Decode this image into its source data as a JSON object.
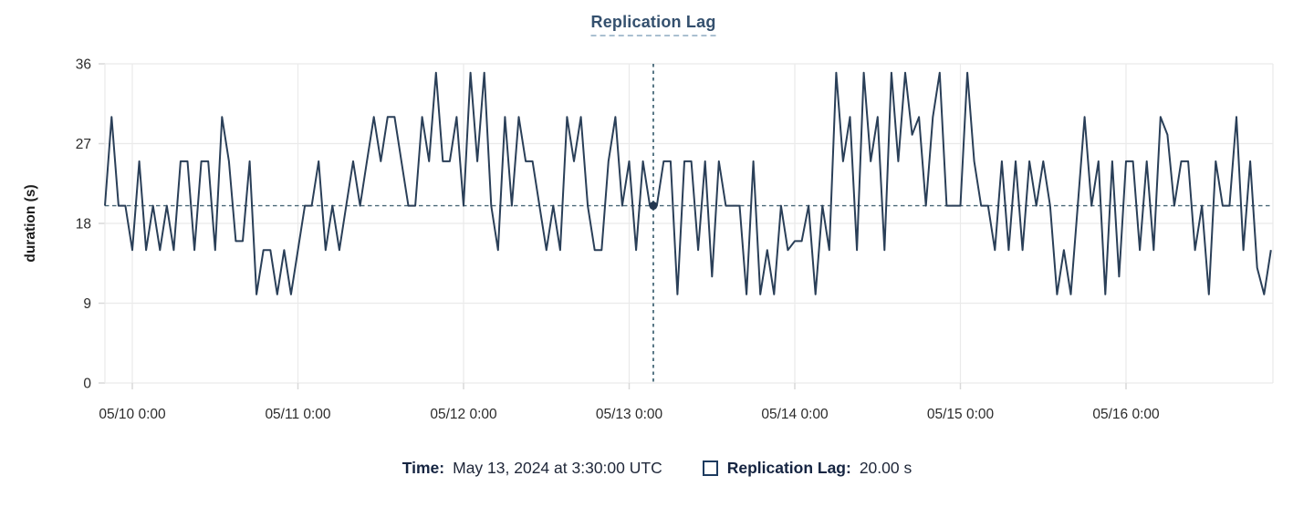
{
  "title": {
    "text": "Replication Lag"
  },
  "y_axis": {
    "label": "duration (s)",
    "ticks": [
      0,
      9,
      18,
      27,
      36
    ],
    "max": 36
  },
  "x_axis": {
    "ticks": [
      {
        "hour": 0,
        "label": "05/10 0:00"
      },
      {
        "hour": 24,
        "label": "05/11 0:00"
      },
      {
        "hour": 48,
        "label": "05/12 0:00"
      },
      {
        "hour": 72,
        "label": "05/13 0:00"
      },
      {
        "hour": 96,
        "label": "05/14 0:00"
      },
      {
        "hour": 120,
        "label": "05/15 0:00"
      },
      {
        "hour": 144,
        "label": "05/16 0:00"
      }
    ]
  },
  "tooltip": {
    "time_label": "Time:",
    "time_value": "May 13, 2024 at 3:30:00 UTC",
    "series_label": "Replication Lag:",
    "series_value": "20.00 s"
  },
  "crosshair": {
    "hour": 75.5,
    "value": 20
  },
  "colors": {
    "series_line": "#2a3f58",
    "threshold_dash": "#4a6878",
    "crosshair_dash": "#3b5f71",
    "marker": "#243750",
    "grid": "#eaeaea",
    "tick": "#d9d9d9",
    "tick_text": "#2b2b2b",
    "axis_title": "#1c1c1c",
    "title": "#34506e",
    "title_underline": "#a9bfd0",
    "tooltip_label": "#152441",
    "tooltip_value": "#20283a",
    "swatch_border": "#1d3b5f"
  },
  "chart_data": {
    "type": "line",
    "title": "Replication Lag",
    "ylabel": "duration (s)",
    "xlabel": "",
    "ylim": [
      0,
      36
    ],
    "grid": true,
    "legend_position": "bottom",
    "x_unit": "hours since 2024-05-10 00:00 UTC",
    "x_start": -4,
    "x_step": 1,
    "threshold_line": 20,
    "hover_point": {
      "hour": 75.5,
      "value": 20
    },
    "values": [
      20,
      30,
      20,
      20,
      15,
      25,
      15,
      20,
      15,
      20,
      15,
      25,
      25,
      15,
      25,
      25,
      15,
      30,
      25,
      16,
      16,
      25,
      10,
      15,
      15,
      10,
      15,
      10,
      15,
      20,
      20,
      25,
      15,
      20,
      15,
      20,
      25,
      20,
      25,
      30,
      25,
      30,
      30,
      25,
      20,
      20,
      30,
      25,
      35,
      25,
      25,
      30,
      20,
      35,
      25,
      35,
      20,
      15,
      30,
      20,
      30,
      25,
      25,
      20,
      15,
      20,
      15,
      30,
      25,
      30,
      20,
      15,
      15,
      25,
      30,
      20,
      25,
      15,
      25,
      20,
      20,
      25,
      25,
      10,
      25,
      25,
      15,
      25,
      12,
      25,
      20,
      20,
      20,
      10,
      25,
      10,
      15,
      10,
      20,
      15,
      16,
      16,
      20,
      10,
      20,
      15,
      35,
      25,
      30,
      15,
      35,
      25,
      30,
      15,
      35,
      25,
      35,
      28,
      30,
      20,
      30,
      35,
      20,
      20,
      20,
      35,
      25,
      20,
      20,
      15,
      25,
      15,
      25,
      15,
      25,
      20,
      25,
      20,
      10,
      15,
      10,
      20,
      30,
      20,
      25,
      10,
      25,
      12,
      25,
      25,
      15,
      25,
      15,
      30,
      28,
      20,
      25,
      25,
      15,
      20,
      10,
      25,
      20,
      20,
      30,
      15,
      25,
      13,
      10,
      15
    ]
  }
}
